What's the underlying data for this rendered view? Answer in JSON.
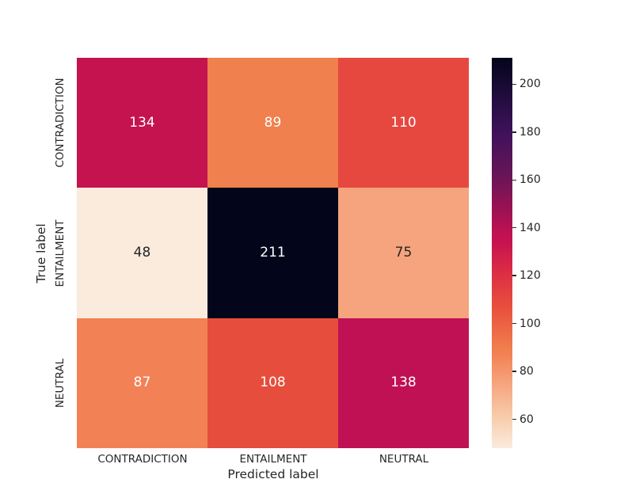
{
  "figure": {
    "background": "#ffffff",
    "text_color": "#262626"
  },
  "chart_data": {
    "type": "heatmap",
    "title": "",
    "xlabel": "Predicted label",
    "ylabel": "True label",
    "x_categories": [
      "CONTRADICTION",
      "ENTAILMENT",
      "NEUTRAL"
    ],
    "y_categories": [
      "CONTRADICTION",
      "ENTAILMENT",
      "NEUTRAL"
    ],
    "values": [
      [
        134,
        89,
        110
      ],
      [
        48,
        211,
        75
      ],
      [
        87,
        108,
        138
      ]
    ],
    "vmin": 48,
    "vmax": 211,
    "legend_position": "colorbar-right",
    "grid": false,
    "colorbar_ticks": [
      "200",
      "180",
      "160",
      "140",
      "120",
      "100",
      "80",
      "60"
    ],
    "cell_colors": [
      [
        "#c5134f",
        "#f0804e",
        "#e6483f"
      ],
      [
        "#faebdd",
        "#03051a",
        "#f5a47e"
      ],
      [
        "#f28255",
        "#e74d3c",
        "#bf1153"
      ]
    ],
    "annot_colors": [
      [
        "#ffffff",
        "#ffffff",
        "#ffffff"
      ],
      [
        "#262626",
        "#ffffff",
        "#262626"
      ],
      [
        "#ffffff",
        "#ffffff",
        "#ffffff"
      ]
    ],
    "colorbar_gradient": [
      {
        "pos": "0%",
        "color": "#03051a"
      },
      {
        "pos": "10%",
        "color": "#210c3e"
      },
      {
        "pos": "20%",
        "color": "#41125b"
      },
      {
        "pos": "30%",
        "color": "#671557"
      },
      {
        "pos": "38%",
        "color": "#951253"
      },
      {
        "pos": "44.8%",
        "color": "#bf1153"
      },
      {
        "pos": "47.2%",
        "color": "#c5134f"
      },
      {
        "pos": "55%",
        "color": "#dc2d43"
      },
      {
        "pos": "62%",
        "color": "#e6483f"
      },
      {
        "pos": "63.2%",
        "color": "#e74d3c"
      },
      {
        "pos": "70%",
        "color": "#ee6a46"
      },
      {
        "pos": "74.8%",
        "color": "#f0804e"
      },
      {
        "pos": "76.1%",
        "color": "#f28255"
      },
      {
        "pos": "83.4%",
        "color": "#f5a47e"
      },
      {
        "pos": "92%",
        "color": "#f8ccab"
      },
      {
        "pos": "100%",
        "color": "#faebdd"
      }
    ]
  }
}
